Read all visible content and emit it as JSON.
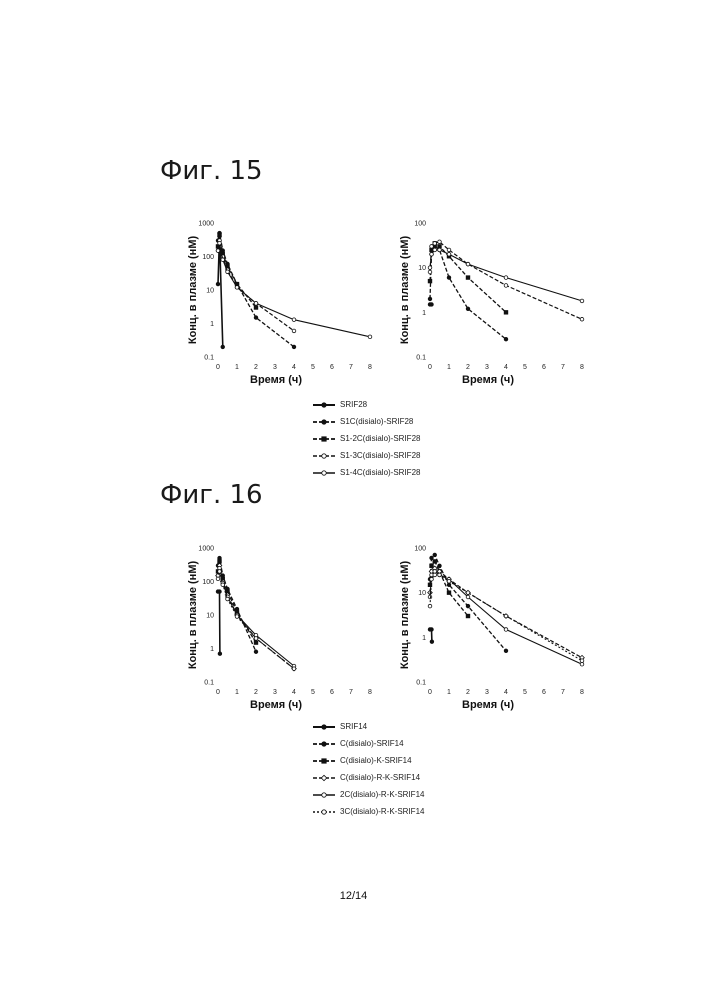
{
  "figures": {
    "fig15_title": "Фиг. 15",
    "fig16_title": "Фиг. 16"
  },
  "page_number": "12/14",
  "legend15": [
    "SRIF28",
    "S1C(disialo)-SRIF28",
    "S1-2C(disialo)-SRIF28",
    "S1-3C(disialo)-SRIF28",
    "S1-4C(disialo)-SRIF28"
  ],
  "legend16": [
    "SRIF14",
    "C(disialo)-SRIF14",
    "C(disialo)-K-SRIF14",
    "C(disialo)-R-K-SRIF14",
    "2C(disialo)-R-K-SRIF14",
    "3C(disialo)-R-K-SRIF14"
  ],
  "chart_data": [
    {
      "type": "line",
      "figure": "Фиг. 15",
      "panel": "left",
      "xlabel": "Время (ч)",
      "ylabel": "Конц. в плазме (нМ)",
      "log_y": true,
      "xlim": [
        0,
        8
      ],
      "ylim": [
        0.1,
        1000
      ],
      "x_ticks": [
        "0",
        "1",
        "2",
        "3",
        "4",
        "5",
        "6",
        "7",
        "8"
      ],
      "y_ticks": [
        "0.1",
        "1",
        "10",
        "100",
        "1000"
      ],
      "series": [
        {
          "name": "SRIF28",
          "style": "solid-filled",
          "x": [
            0.0,
            0.08,
            0.25
          ],
          "y": [
            15,
            400,
            0.2
          ]
        },
        {
          "name": "S1C(disialo)-SRIF28",
          "style": "dash-filled",
          "x": [
            0.0,
            0.08,
            0.25,
            0.5,
            1,
            2,
            4
          ],
          "y": [
            300,
            500,
            150,
            60,
            15,
            1.5,
            0.2
          ]
        },
        {
          "name": "S1-2C(disialo)-SRIF28",
          "style": "dash-square",
          "x": [
            0.0,
            0.08,
            0.25,
            0.5,
            1,
            2
          ],
          "y": [
            200,
            450,
            120,
            50,
            15,
            3
          ]
        },
        {
          "name": "S1-3C(disialo)-SRIF28",
          "style": "dash-open",
          "x": [
            0.0,
            0.08,
            0.25,
            0.5,
            1,
            2,
            4
          ],
          "y": [
            150,
            300,
            100,
            40,
            12,
            4,
            0.6
          ]
        },
        {
          "name": "S1-4C(disialo)-SRIF28",
          "style": "solid-open",
          "x": [
            0.0,
            0.08,
            0.25,
            0.5,
            1,
            2,
            4,
            8
          ],
          "y": [
            150,
            250,
            80,
            35,
            12,
            4,
            1.3,
            0.4
          ]
        }
      ]
    },
    {
      "type": "line",
      "figure": "Фиг. 15",
      "panel": "right",
      "xlabel": "Время (ч)",
      "ylabel": "Конц. в плазме (нМ)",
      "log_y": true,
      "xlim": [
        0,
        8
      ],
      "ylim": [
        0.1,
        100
      ],
      "x_ticks": [
        "0",
        "1",
        "2",
        "3",
        "4",
        "5",
        "6",
        "7",
        "8"
      ],
      "y_ticks": [
        "0.1",
        "1",
        "10",
        "100"
      ],
      "series": [
        {
          "name": "SRIF28",
          "style": "solid-filled",
          "x": [
            0.0,
            0.08
          ],
          "y": [
            1.5,
            1.5
          ]
        },
        {
          "name": "S1C(disialo)-SRIF28",
          "style": "dash-filled",
          "x": [
            0.0,
            0.08,
            0.25,
            0.5,
            1,
            2,
            4
          ],
          "y": [
            2,
            20,
            30,
            25,
            6,
            1.2,
            0.25
          ]
        },
        {
          "name": "S1-2C(disialo)-SRIF28",
          "style": "dash-square",
          "x": [
            0.0,
            0.08,
            0.25,
            0.5,
            1,
            2,
            4
          ],
          "y": [
            5,
            25,
            35,
            30,
            18,
            6,
            1
          ]
        },
        {
          "name": "S1-3C(disialo)-SRIF28",
          "style": "dash-open",
          "x": [
            0.0,
            0.08,
            0.25,
            0.5,
            1,
            2,
            4,
            8
          ],
          "y": [
            8,
            30,
            35,
            38,
            25,
            12,
            4,
            0.7
          ]
        },
        {
          "name": "S1-4C(disialo)-SRIF28",
          "style": "solid-open",
          "x": [
            0.0,
            0.08,
            0.25,
            0.5,
            1,
            2,
            4,
            8
          ],
          "y": [
            10,
            20,
            25,
            25,
            20,
            12,
            6,
            1.8
          ]
        }
      ]
    },
    {
      "type": "line",
      "figure": "Фиг. 16",
      "panel": "left",
      "xlabel": "Время (ч)",
      "ylabel": "Конц. в плазме (нМ)",
      "log_y": true,
      "xlim": [
        0,
        8
      ],
      "ylim": [
        0.1,
        1000
      ],
      "x_ticks": [
        "0",
        "1",
        "2",
        "3",
        "4",
        "5",
        "6",
        "7",
        "8"
      ],
      "y_ticks": [
        "0.1",
        "1",
        "10",
        "100",
        "1000"
      ],
      "series": [
        {
          "name": "SRIF14",
          "style": "solid-filled",
          "x": [
            0.0,
            0.08,
            0.1
          ],
          "y": [
            50,
            50,
            0.7
          ]
        },
        {
          "name": "C(disialo)-SRIF14",
          "style": "dash-filled",
          "x": [
            0.0,
            0.08,
            0.25,
            0.5,
            1,
            2
          ],
          "y": [
            300,
            500,
            150,
            60,
            15,
            0.8
          ]
        },
        {
          "name": "C(disialo)-K-SRIF14",
          "style": "dash-square",
          "x": [
            0.0,
            0.08,
            0.25,
            0.5,
            1,
            2
          ],
          "y": [
            200,
            400,
            120,
            50,
            12,
            1.5
          ]
        },
        {
          "name": "C(disialo)-R-K-SRIF14",
          "style": "dash-diamond",
          "x": [
            0.0,
            0.08,
            0.25,
            0.5,
            1,
            2,
            4
          ],
          "y": [
            150,
            300,
            100,
            40,
            10,
            2,
            0.25
          ]
        },
        {
          "name": "2C(disialo)-R-K-SRIF14",
          "style": "solid-open",
          "x": [
            0.0,
            0.08,
            0.25,
            0.5,
            1,
            2,
            4
          ],
          "y": [
            150,
            250,
            90,
            35,
            10,
            2.5,
            0.3
          ]
        },
        {
          "name": "3C(disialo)-R-K-SRIF14",
          "style": "dot-open",
          "x": [
            0.0,
            0.08,
            0.25,
            0.5,
            1,
            2,
            4
          ],
          "y": [
            120,
            200,
            80,
            30,
            9,
            2,
            0.25
          ]
        }
      ]
    },
    {
      "type": "line",
      "figure": "Фиг. 16",
      "panel": "right",
      "xlabel": "Время (ч)",
      "ylabel": "Конц. в плазме (нМ)",
      "log_y": true,
      "xlim": [
        0,
        8
      ],
      "ylim": [
        0.1,
        100
      ],
      "x_ticks": [
        "0",
        "1",
        "2",
        "3",
        "4",
        "5",
        "6",
        "7",
        "8"
      ],
      "y_ticks": [
        "0.1",
        "1",
        "10",
        "100"
      ],
      "series": [
        {
          "name": "SRIF14",
          "style": "solid-filled",
          "x": [
            0.0,
            0.08,
            0.1
          ],
          "y": [
            1.5,
            1.5,
            0.8
          ]
        },
        {
          "name": "C(disialo)-SRIF14",
          "style": "dash-filled",
          "x": [
            0.0,
            0.08,
            0.25,
            0.5,
            1,
            2,
            4
          ],
          "y": [
            20,
            60,
            70,
            40,
            15,
            5,
            0.5
          ]
        },
        {
          "name": "C(disialo)-K-SRIF14",
          "style": "dash-square",
          "x": [
            0.0,
            0.08,
            0.25,
            0.5,
            1,
            2
          ],
          "y": [
            15,
            40,
            50,
            30,
            10,
            3
          ]
        },
        {
          "name": "C(disialo)-R-K-SRIF14",
          "style": "dash-diamond",
          "x": [
            0.0,
            0.08,
            0.25,
            0.5,
            1,
            2,
            4,
            8
          ],
          "y": [
            10,
            30,
            35,
            30,
            20,
            10,
            3,
            0.35
          ]
        },
        {
          "name": "2C(disialo)-R-K-SRIF14",
          "style": "solid-open",
          "x": [
            0.0,
            0.08,
            0.25,
            0.5,
            1,
            2,
            4,
            8
          ],
          "y": [
            8,
            25,
            30,
            25,
            20,
            8,
            1.5,
            0.25
          ]
        },
        {
          "name": "3C(disialo)-R-K-SRIF14",
          "style": "dot-open",
          "x": [
            0.0,
            0.08,
            0.25,
            0.5,
            1,
            2,
            4,
            8
          ],
          "y": [
            5,
            20,
            25,
            25,
            18,
            10,
            3,
            0.3
          ]
        }
      ]
    }
  ]
}
